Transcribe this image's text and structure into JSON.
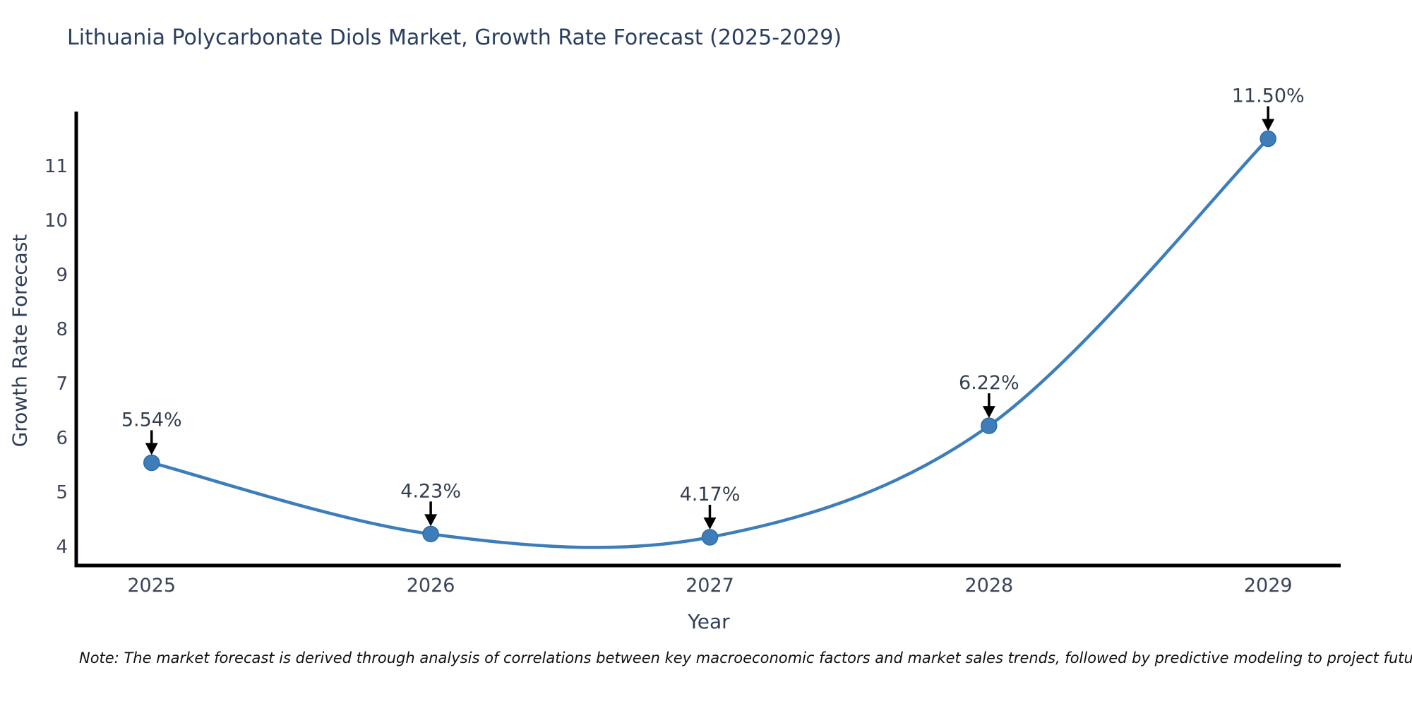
{
  "title": "Lithuania Polycarbonate Diols Market, Growth Rate Forecast (2025-2029)",
  "note": "Note: The market forecast is derived through analysis of correlations between key macroeconomic factors and market sales trends, followed by predictive modeling to project future sales",
  "chart_data": {
    "type": "line",
    "title": "Lithuania Polycarbonate Diols Market, Growth Rate Forecast (2025-2029)",
    "xlabel": "Year",
    "ylabel": "Growth Rate Forecast",
    "x": [
      2025,
      2026,
      2027,
      2028,
      2029
    ],
    "values": [
      5.54,
      4.23,
      4.17,
      6.22,
      11.5
    ],
    "labels": [
      "5.54%",
      "4.23%",
      "4.17%",
      "6.22%",
      "11.50%"
    ],
    "yticks": [
      4,
      5,
      6,
      7,
      8,
      9,
      10,
      11
    ],
    "xticks": [
      2025,
      2026,
      2027,
      2028,
      2029
    ],
    "ylim": [
      3.65,
      12.0
    ],
    "xlim": [
      2024.73,
      2029.26
    ],
    "grid": false,
    "legend": false,
    "smoothing": "spline",
    "annotation_arrow": "down"
  },
  "colors": {
    "line": "#3d7eba",
    "marker": "#3d7eba",
    "marker_edge": "#2f6ba3",
    "spine": "#000000",
    "arrow": "#000000",
    "title": "#2a3f5f",
    "axis_label": "#2f3d57",
    "tick_text": "#3b4458",
    "annotation_text": "#333f4f",
    "background": "#ffffff"
  }
}
